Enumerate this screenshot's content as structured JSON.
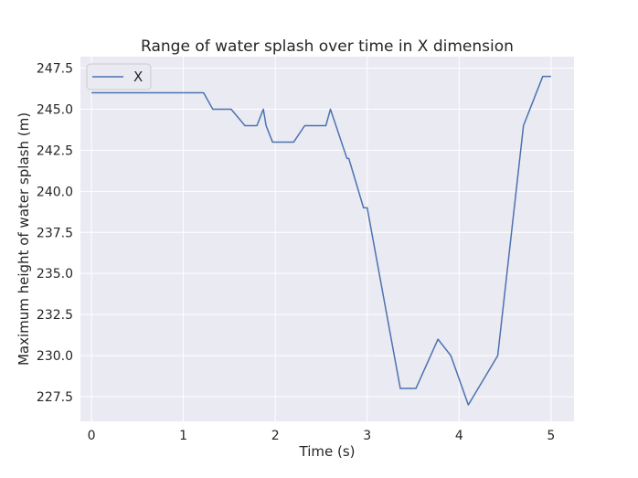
{
  "chart_data": {
    "type": "line",
    "title": "Range of water splash over time in X dimension",
    "xlabel": "Time (s)",
    "ylabel": "Maximum height of water splash (m)",
    "xlim": [
      -0.12,
      5.25
    ],
    "ylim": [
      226.0,
      248.2
    ],
    "xticks": [
      0,
      1,
      2,
      3,
      4,
      5
    ],
    "xtick_labels": [
      "0",
      "1",
      "2",
      "3",
      "4",
      "5"
    ],
    "yticks": [
      227.5,
      230.0,
      232.5,
      235.0,
      237.5,
      240.0,
      242.5,
      245.0,
      247.5
    ],
    "ytick_labels": [
      "227.5",
      "230.0",
      "232.5",
      "235.0",
      "237.5",
      "240.0",
      "242.5",
      "245.0",
      "247.5"
    ],
    "grid": true,
    "legend_position": "top-left",
    "colors": {
      "background": "#eaeaf2",
      "grid": "#ffffff",
      "line": "#4c72b0",
      "text": "#262626"
    },
    "series": [
      {
        "name": "X",
        "x": [
          0.0,
          0.2,
          0.4,
          0.6,
          0.8,
          1.0,
          1.22,
          1.32,
          1.52,
          1.67,
          1.8,
          1.87,
          1.9,
          1.97,
          2.2,
          2.32,
          2.55,
          2.6,
          2.78,
          2.8,
          2.96,
          3.0,
          3.36,
          3.53,
          3.77,
          3.91,
          4.1,
          4.42,
          4.7,
          4.91,
          5.0
        ],
        "y": [
          246,
          246,
          246,
          246,
          246,
          246,
          246,
          245,
          245,
          244,
          244,
          245,
          244,
          243,
          243,
          244,
          244,
          245,
          242,
          242,
          239,
          239,
          228,
          228,
          231,
          230,
          227,
          230,
          244,
          247,
          247
        ]
      }
    ]
  }
}
